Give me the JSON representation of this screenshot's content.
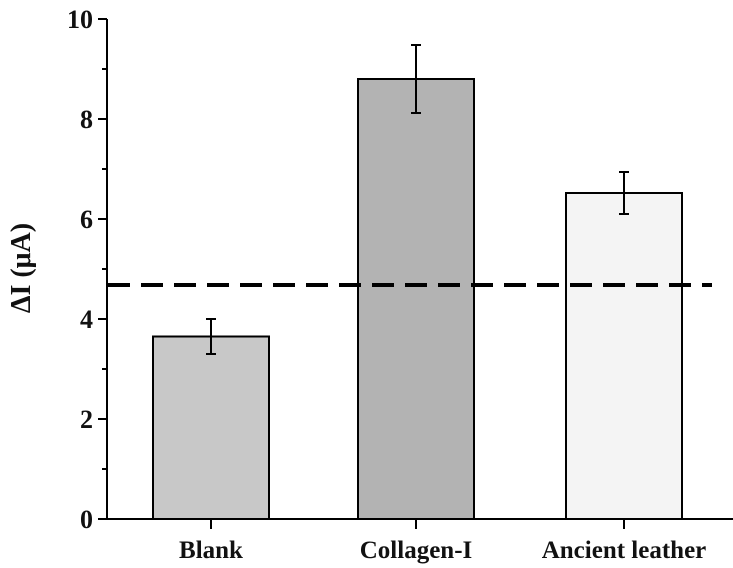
{
  "chart_data": {
    "type": "bar",
    "title": "",
    "xlabel": "",
    "ylabel": "ΔI (μA)",
    "ylim": [
      0,
      10
    ],
    "yticks": [
      0,
      2,
      4,
      6,
      8,
      10
    ],
    "grid": false,
    "categories": [
      "Blank",
      "Collagen-I",
      "Ancient leather"
    ],
    "values": [
      3.65,
      8.8,
      6.52
    ],
    "errors": [
      0.35,
      0.68,
      0.42
    ],
    "bar_colors": [
      "#c8c8c8",
      "#b3b3b3",
      "#f4f4f4"
    ],
    "reference_line": {
      "y": 4.68,
      "style": "dashed",
      "color": "#000000"
    }
  }
}
